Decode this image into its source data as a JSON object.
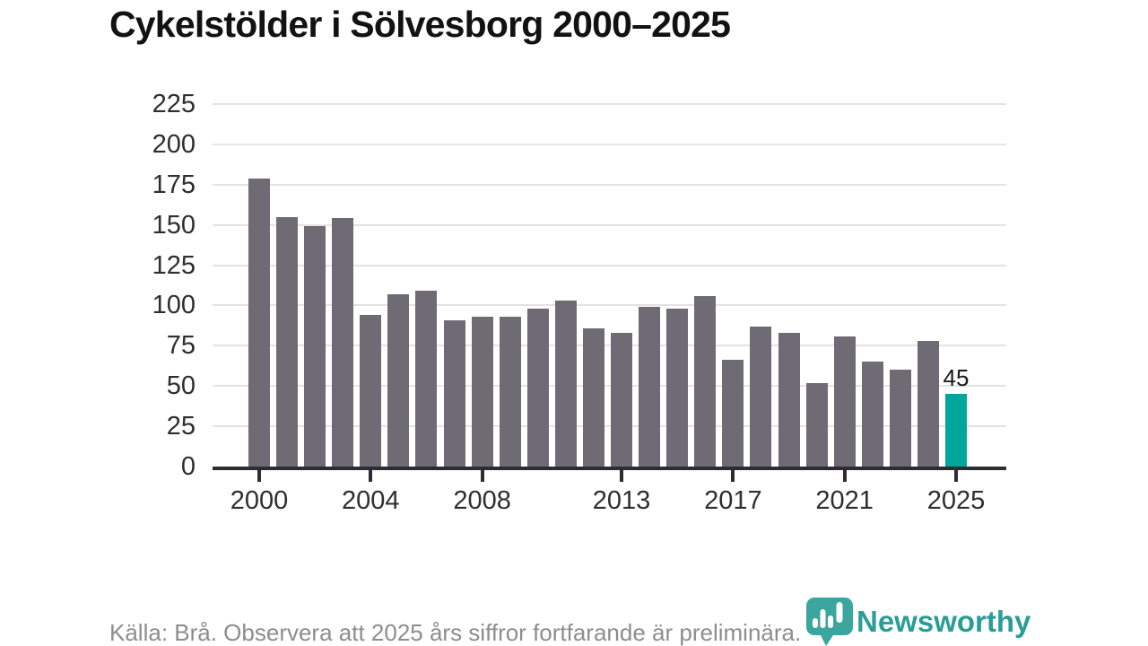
{
  "title": "Cykelstölder i Sölvesborg 2000–2025",
  "annotation_label": "45",
  "footer": {
    "source_text": "Källa: Brå. Observera att 2025 års siffror fortfarande är preliminära."
  },
  "branding": {
    "wordmark": "Newsworthy",
    "icon": "bar-chart-speech-bubble-icon",
    "wordmark_color": "#2A9D97",
    "icon_color": "#3BA69D",
    "icon_bar_color": "#FFFFFF"
  },
  "colors": {
    "bar": "#6F6B74",
    "highlight_bar": "#00A59C",
    "gridline": "#E3E3E3",
    "axis": "#2E2C31",
    "tick_label": "#2E2E2E",
    "title": "#121212",
    "source": "#8D8D8D",
    "annotation": "#1A1A1A"
  },
  "chart_data": {
    "type": "bar",
    "title": "Cykelstölder i Sölvesborg 2000–2025",
    "x": [
      2000,
      2001,
      2002,
      2003,
      2004,
      2005,
      2006,
      2007,
      2008,
      2009,
      2010,
      2011,
      2012,
      2013,
      2014,
      2015,
      2016,
      2017,
      2018,
      2019,
      2020,
      2021,
      2022,
      2023,
      2024,
      2025
    ],
    "values": [
      179,
      155,
      149,
      154,
      94,
      107,
      109,
      91,
      93,
      93,
      98,
      103,
      86,
      83,
      99,
      98,
      106,
      66,
      87,
      83,
      52,
      81,
      65,
      60,
      78,
      45
    ],
    "highlight_year": 2025,
    "highlight_value": 45,
    "data_label": {
      "year": 2025,
      "text": "45"
    },
    "xlabel": "",
    "ylabel": "",
    "ylim": [
      0,
      225
    ],
    "yticks": [
      0,
      25,
      50,
      75,
      100,
      125,
      150,
      175,
      200,
      225
    ],
    "xticks": [
      2000,
      2004,
      2008,
      2013,
      2017,
      2021,
      2025
    ],
    "grid": true,
    "legend": false
  }
}
